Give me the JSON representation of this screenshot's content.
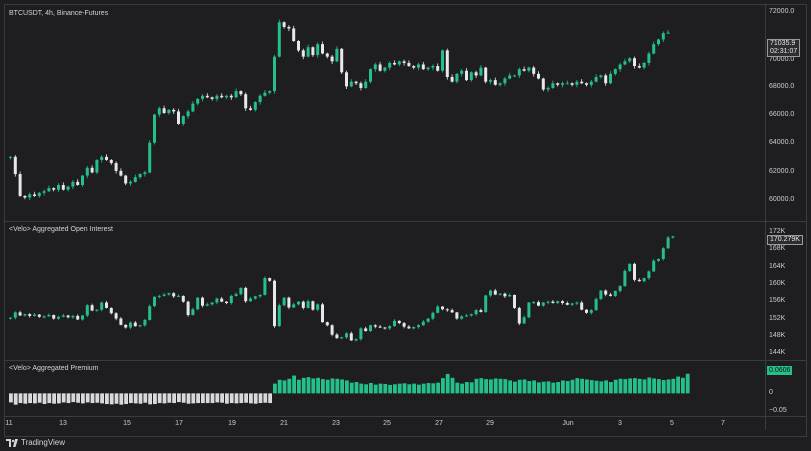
{
  "panes": {
    "price_title": "BTCUSDT, 4h, Binance-Futures",
    "oi_title": "<Velo> Aggregated Open Interest",
    "premium_title": "<Velo> Aggregated Premium"
  },
  "price_axis": {
    "ticks": [
      "72000.0",
      "70000.0",
      "68000.0",
      "66000.0",
      "64000.0",
      "62000.0",
      "60000.0"
    ],
    "last": "71035.9",
    "countdown": "02:31:07"
  },
  "oi_axis": {
    "ticks": [
      "172K",
      "168K",
      "164K",
      "160K",
      "156K",
      "152K",
      "148K",
      "144K"
    ],
    "last": "170.279K"
  },
  "premium_axis": {
    "ticks": [
      "0",
      "−0.05"
    ],
    "last": "0.0606"
  },
  "x_axis": {
    "labels": [
      "11",
      "13",
      "15",
      "17",
      "19",
      "21",
      "23",
      "25",
      "27",
      "29",
      "Jun",
      "3",
      "5",
      "7"
    ]
  },
  "brand": {
    "name": "TradingView",
    "icon": "tradingview-logo-icon"
  },
  "colors": {
    "background": "#1e1e21",
    "up": "#25c08a",
    "down": "#e8e8ec",
    "premium_positive": "#25c08a",
    "premium_negative": "#d9d9dd",
    "grid_line": "#3a3b40"
  },
  "chart_data": [
    {
      "type": "candlestick",
      "title": "BTCUSDT, 4h, Binance-Futures",
      "ylim": [
        59000,
        72800
      ],
      "points": [
        63100,
        62000,
        60600,
        60500,
        60700,
        60600,
        60800,
        60900,
        61100,
        61000,
        61300,
        61000,
        61200,
        61500,
        61300,
        61900,
        62400,
        62100,
        62900,
        63100,
        62900,
        62700,
        62200,
        61900,
        61400,
        61500,
        61800,
        62000,
        62100,
        64000,
        65800,
        66200,
        65900,
        66100,
        66000,
        65200,
        65700,
        66000,
        66500,
        66800,
        67000,
        66900,
        66800,
        67000,
        66900,
        67000,
        66900,
        67300,
        67100,
        66200,
        66100,
        66600,
        67000,
        67200,
        67300,
        69500,
        71700,
        71400,
        71300,
        70500,
        69900,
        69500,
        70100,
        69600,
        70300,
        69700,
        69500,
        69200,
        70000,
        68500,
        67600,
        67900,
        67800,
        67500,
        67900,
        68700,
        69000,
        68600,
        68800,
        69100,
        69000,
        69200,
        69100,
        68900,
        68800,
        69000,
        68700,
        68800,
        68900,
        68600,
        69900,
        68200,
        67900,
        68400,
        68600,
        68000,
        68500,
        68300,
        68800,
        67900,
        68000,
        67700,
        67800,
        68100,
        68300,
        68300,
        68700,
        68600,
        68800,
        68400,
        68100,
        67400,
        67500,
        67800,
        67700,
        67800,
        67800,
        67700,
        67900,
        67800,
        67700,
        67900,
        68200,
        68300,
        67800,
        68400,
        68700,
        69000,
        69200,
        69400,
        68900,
        68800,
        69100,
        69700,
        70300,
        70600,
        71000,
        71035.9
      ]
    },
    {
      "type": "candlestick",
      "title": "<Velo> Aggregated Open Interest",
      "ylim": [
        142500,
        173500
      ],
      "points": [
        152000,
        153200,
        152500,
        152800,
        152400,
        152700,
        152200,
        152300,
        152600,
        151800,
        152200,
        152500,
        152100,
        152400,
        151600,
        152500,
        154800,
        153600,
        153800,
        155400,
        154200,
        153000,
        151800,
        150400,
        149800,
        150900,
        150100,
        150300,
        151500,
        154600,
        156700,
        156900,
        157200,
        157500,
        156800,
        156900,
        155600,
        152600,
        153900,
        156500,
        154700,
        155000,
        155400,
        156300,
        155600,
        155300,
        156900,
        157300,
        158700,
        155700,
        156300,
        156800,
        157100,
        160900,
        160300,
        150100,
        154800,
        156500,
        154300,
        155000,
        155600,
        154200,
        155700,
        153800,
        155000,
        151000,
        150300,
        148200,
        147400,
        147600,
        148500,
        146900,
        147200,
        149600,
        149000,
        150300,
        150000,
        149800,
        149600,
        150100,
        151300,
        150800,
        150000,
        149600,
        149900,
        150300,
        151100,
        151800,
        153100,
        154500,
        153900,
        153700,
        153200,
        151800,
        152300,
        152500,
        152800,
        153700,
        153300,
        157000,
        158100,
        157200,
        157400,
        156800,
        157100,
        154200,
        150700,
        152100,
        155400,
        155500,
        154700,
        155400,
        155600,
        155300,
        155700,
        155300,
        154900,
        155200,
        155400,
        153800,
        153100,
        153700,
        156200,
        158100,
        157200,
        156900,
        158000,
        159100,
        162500,
        164100,
        160500,
        160200,
        160900,
        162400,
        164800,
        165200,
        167600,
        170000,
        170279
      ]
    },
    {
      "type": "bar",
      "title": "<Velo> Aggregated Premium",
      "ylim": [
        -0.07,
        0.1
      ],
      "points": [
        -0.028,
        -0.035,
        -0.03,
        -0.032,
        -0.03,
        -0.031,
        -0.029,
        -0.033,
        -0.03,
        -0.032,
        -0.031,
        -0.028,
        -0.03,
        -0.027,
        -0.029,
        -0.031,
        -0.028,
        -0.03,
        -0.029,
        -0.031,
        -0.033,
        -0.034,
        -0.032,
        -0.035,
        -0.033,
        -0.03,
        -0.031,
        -0.032,
        -0.029,
        -0.034,
        -0.033,
        -0.03,
        -0.031,
        -0.029,
        -0.03,
        -0.027,
        -0.029,
        -0.032,
        -0.031,
        -0.03,
        -0.03,
        -0.03,
        -0.03,
        -0.028,
        -0.029,
        -0.032,
        -0.03,
        -0.031,
        -0.03,
        -0.029,
        -0.031,
        -0.032,
        -0.03,
        -0.029,
        -0.03,
        0.03,
        0.042,
        0.04,
        0.045,
        0.055,
        0.042,
        0.048,
        0.05,
        0.046,
        0.048,
        0.044,
        0.042,
        0.046,
        0.045,
        0.043,
        0.04,
        0.033,
        0.035,
        0.03,
        0.028,
        0.032,
        0.027,
        0.03,
        0.029,
        0.026,
        0.028,
        0.03,
        0.031,
        0.028,
        0.03,
        0.027,
        0.03,
        0.032,
        0.031,
        0.033,
        0.047,
        0.06,
        0.048,
        0.033,
        0.03,
        0.035,
        0.034,
        0.045,
        0.047,
        0.044,
        0.043,
        0.046,
        0.045,
        0.044,
        0.04,
        0.036,
        0.042,
        0.043,
        0.038,
        0.04,
        0.034,
        0.036,
        0.037,
        0.033,
        0.035,
        0.04,
        0.038,
        0.042,
        0.047,
        0.045,
        0.043,
        0.041,
        0.039,
        0.037,
        0.04,
        0.035,
        0.042,
        0.045,
        0.044,
        0.046,
        0.047,
        0.045,
        0.043,
        0.049,
        0.046,
        0.044,
        0.041,
        0.043,
        0.045,
        0.052,
        0.048,
        0.0606
      ]
    }
  ]
}
